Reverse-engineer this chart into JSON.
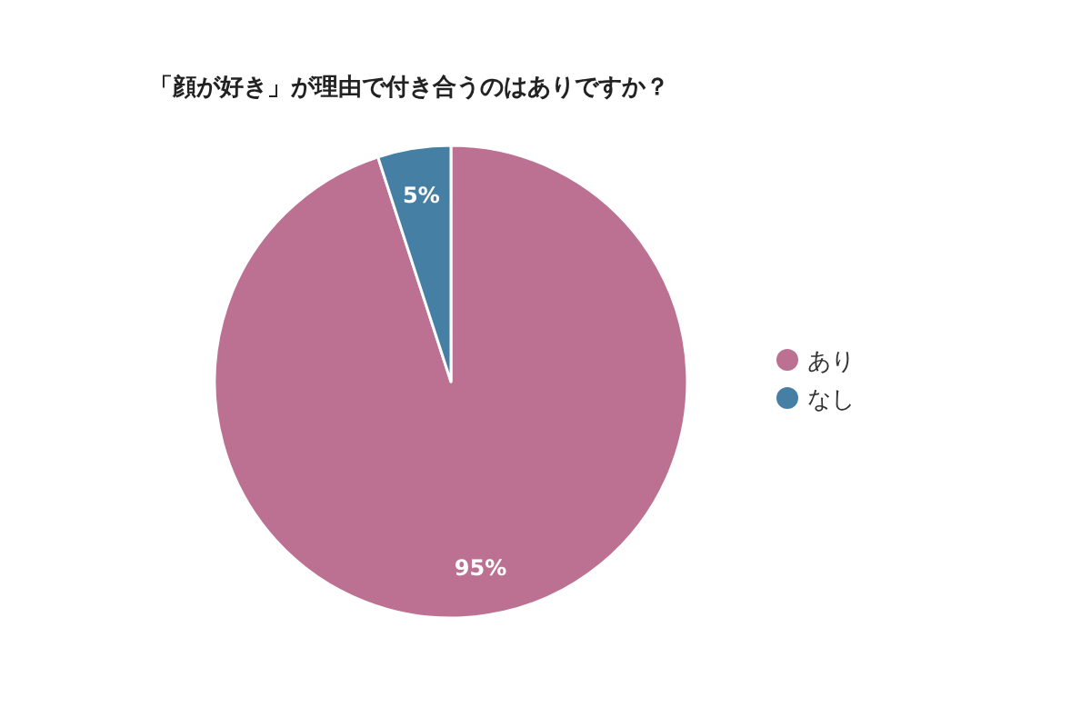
{
  "chart_data": {
    "type": "pie",
    "title": "「顔が好き」が理由で付き合うのはありですか？",
    "categories": [
      "あり",
      "なし"
    ],
    "values": [
      95,
      5
    ],
    "colors": [
      "#bc7192",
      "#457fa3"
    ],
    "value_labels": [
      "95%",
      "5%"
    ],
    "legend": "right"
  }
}
